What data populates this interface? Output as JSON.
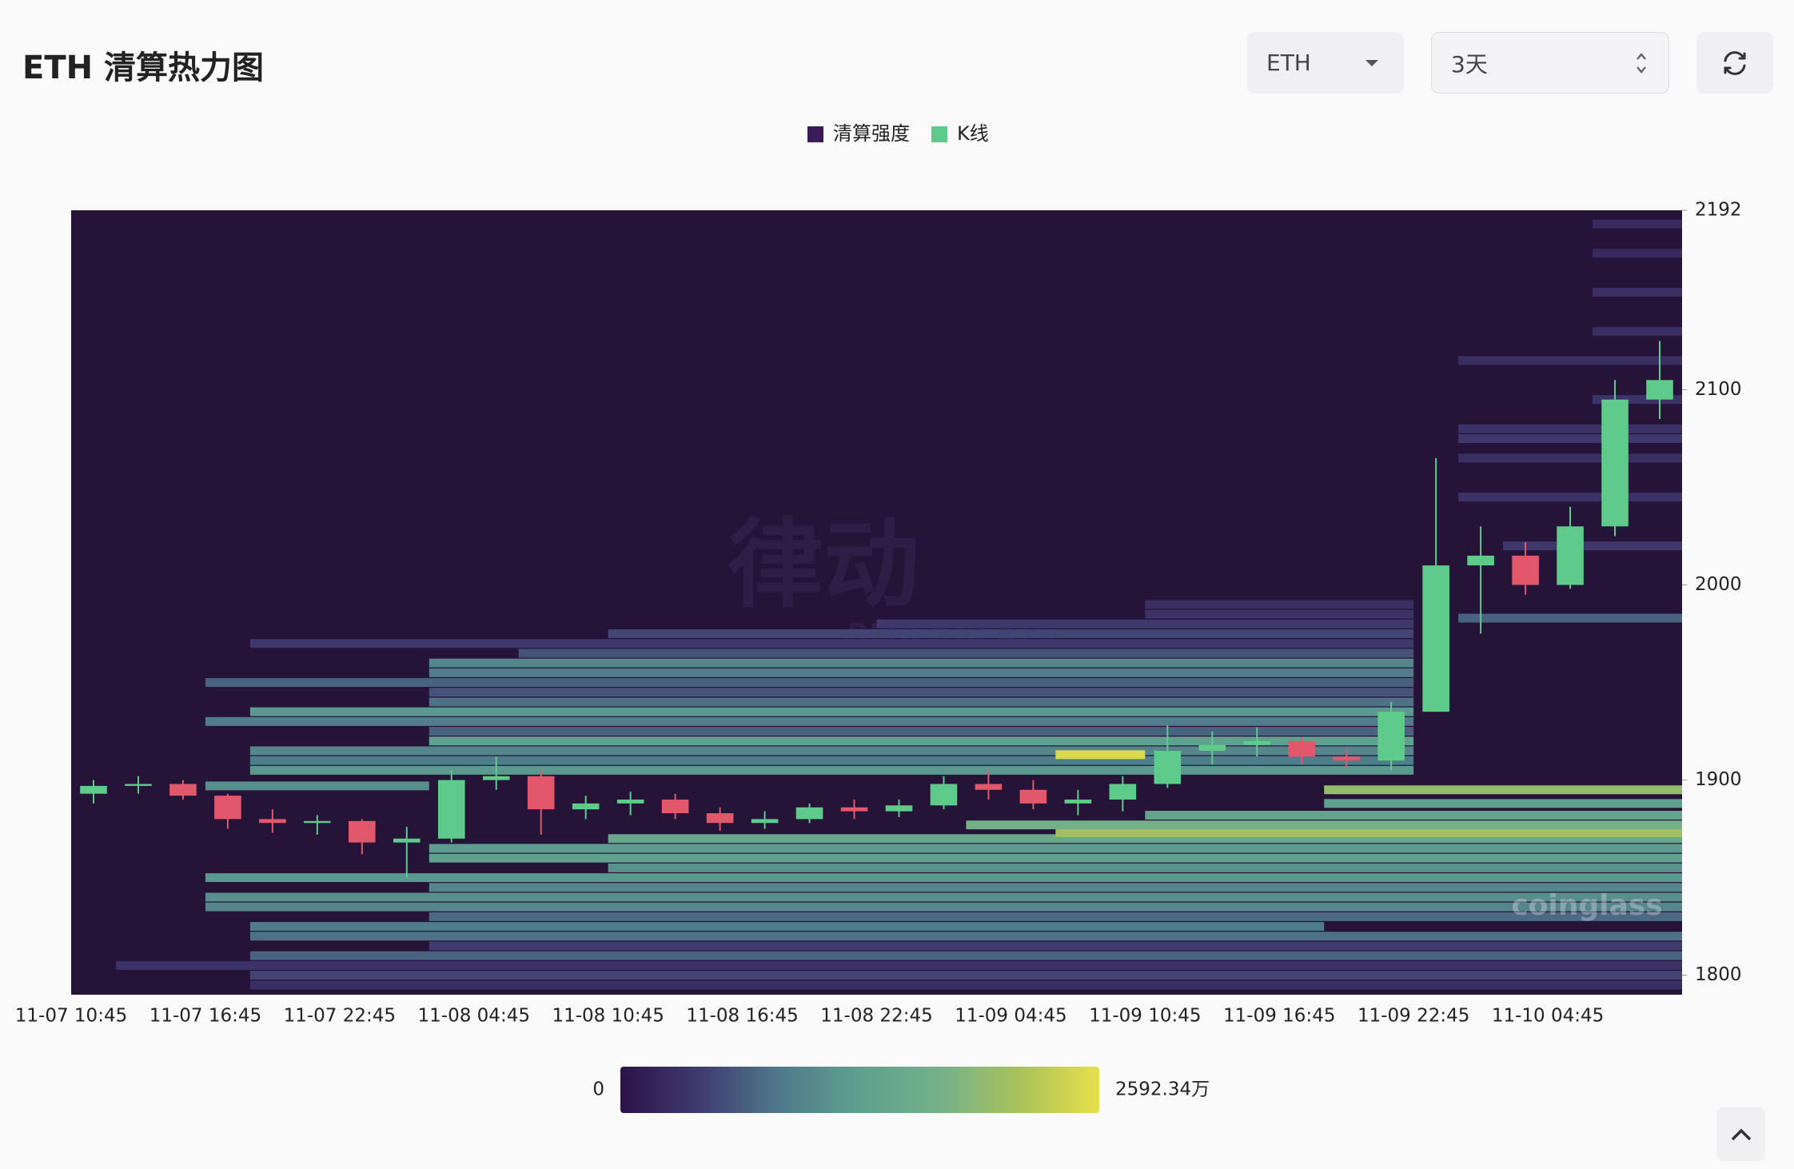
{
  "header": {
    "title": "ETH 清算热力图",
    "symbol": "ETH",
    "range": "3天"
  },
  "chart_data": {
    "type": "liquidation-heatmap",
    "series": [
      {
        "name": "清算强度",
        "color": "#3b1c5a"
      },
      {
        "name": "K线",
        "color": "#5ecb8b"
      }
    ],
    "categories": [
      "11-07 10:45",
      null,
      null,
      "11-07 16:45",
      null,
      null,
      "11-07 22:45",
      null,
      null,
      "11-08 04:45",
      null,
      null,
      "11-08 10:45",
      null,
      null,
      "11-08 16:45",
      null,
      null,
      "11-08 22:45",
      null,
      null,
      "11-09 04:45",
      null,
      null,
      "11-09 10:45",
      null,
      null,
      "11-09 16:45",
      null,
      null,
      "11-09 22:45",
      null,
      null,
      "11-10 04:45",
      null,
      null
    ],
    "candles": {
      "up_color": "#5ecb8b",
      "down_color": "#e0586a",
      "open": [
        1893,
        1897,
        1898,
        1892,
        1880,
        1878,
        1879,
        1868,
        1870,
        1900,
        1902,
        1885,
        1888,
        1890,
        1883,
        1878,
        1880,
        1886,
        1884,
        1887,
        1898,
        1895,
        1888,
        1890,
        1898,
        1915,
        1918,
        1920,
        1912,
        1910,
        1935,
        2010,
        2015,
        2000,
        2030,
        2095
      ],
      "high": [
        1900,
        1902,
        1900,
        1893,
        1885,
        1882,
        1880,
        1876,
        1905,
        1912,
        1905,
        1892,
        1894,
        1893,
        1886,
        1884,
        1888,
        1890,
        1890,
        1902,
        1905,
        1900,
        1895,
        1902,
        1928,
        1925,
        1927,
        1922,
        1916,
        1940,
        2065,
        2030,
        2022,
        2040,
        2105,
        2125
      ],
      "low": [
        1888,
        1893,
        1890,
        1875,
        1873,
        1872,
        1862,
        1850,
        1868,
        1895,
        1872,
        1880,
        1882,
        1880,
        1874,
        1875,
        1878,
        1880,
        1881,
        1885,
        1890,
        1885,
        1882,
        1884,
        1896,
        1908,
        1912,
        1908,
        1906,
        1905,
        1935,
        1975,
        1995,
        1998,
        2025,
        2085
      ],
      "close": [
        1897,
        1898,
        1892,
        1880,
        1878,
        1879,
        1868,
        1870,
        1900,
        1902,
        1885,
        1888,
        1890,
        1883,
        1878,
        1880,
        1886,
        1884,
        1887,
        1898,
        1895,
        1888,
        1890,
        1898,
        1915,
        1918,
        1920,
        1912,
        1910,
        1935,
        2010,
        2015,
        2000,
        2030,
        2095,
        2105
      ]
    },
    "levels": {
      "price": [
        1795,
        1800,
        1805,
        1810,
        1815,
        1820,
        1825,
        1830,
        1835,
        1840,
        1845,
        1850,
        1855,
        1860,
        1865,
        1870,
        1873,
        1877,
        1882,
        1888,
        1895,
        1897,
        1905,
        1910,
        1915,
        1913,
        1920,
        1925,
        1930,
        1935,
        1940,
        1945,
        1950,
        1955,
        1960,
        1965,
        1970,
        1975,
        1980,
        1985,
        1990,
        1983,
        2020,
        2045,
        2065,
        2075,
        2080,
        2095,
        2115,
        2130,
        2150,
        2170,
        2185
      ],
      "start": [
        4,
        4,
        1,
        4,
        8,
        4,
        4,
        8,
        3,
        3,
        8,
        3,
        12,
        8,
        8,
        12,
        22,
        20,
        24,
        28,
        28,
        3,
        4,
        4,
        4,
        22,
        8,
        8,
        3,
        4,
        8,
        8,
        3,
        8,
        8,
        10,
        4,
        12,
        18,
        24,
        24,
        31,
        32,
        31,
        31,
        31,
        31,
        34,
        31,
        34,
        34,
        34,
        34
      ],
      "end": [
        36,
        36,
        36,
        36,
        36,
        36,
        28,
        36,
        36,
        36,
        36,
        36,
        36,
        36,
        36,
        36,
        36,
        36,
        36,
        36,
        36,
        8,
        30,
        30,
        30,
        24,
        30,
        30,
        30,
        30,
        30,
        30,
        30,
        30,
        30,
        30,
        30,
        30,
        30,
        30,
        30,
        36,
        36,
        36,
        36,
        36,
        36,
        36,
        36,
        36,
        36,
        36,
        36
      ],
      "values": [
        300,
        500,
        350,
        700,
        450,
        800,
        900,
        750,
        1000,
        1100,
        1000,
        1200,
        1150,
        1300,
        1250,
        1500,
        2100,
        1700,
        1400,
        1300,
        2000,
        1100,
        1200,
        900,
        1000,
        2500,
        1300,
        700,
        900,
        1200,
        800,
        600,
        700,
        900,
        1000,
        600,
        400,
        500,
        400,
        350,
        300,
        700,
        400,
        350,
        300,
        400,
        350,
        350,
        300,
        300,
        300,
        250,
        250
      ]
    },
    "ylim": [
      1790,
      2192
    ],
    "yticks": [
      1800,
      1900,
      2000,
      2100,
      2192
    ],
    "clim": [
      0,
      2592.34
    ],
    "colorbar_ticks": [
      0,
      {
        "value": 2592.34,
        "label": "2592.34万"
      }
    ],
    "colorscale": [
      "#2b1346",
      "#3f3b70",
      "#4f7a8a",
      "#5fa08e",
      "#74b18a",
      "#a9c25a",
      "#e8e04a"
    ],
    "background": "#261338",
    "watermarks": [
      "律动",
      "BLOCKBEATS",
      "coinglass"
    ]
  }
}
